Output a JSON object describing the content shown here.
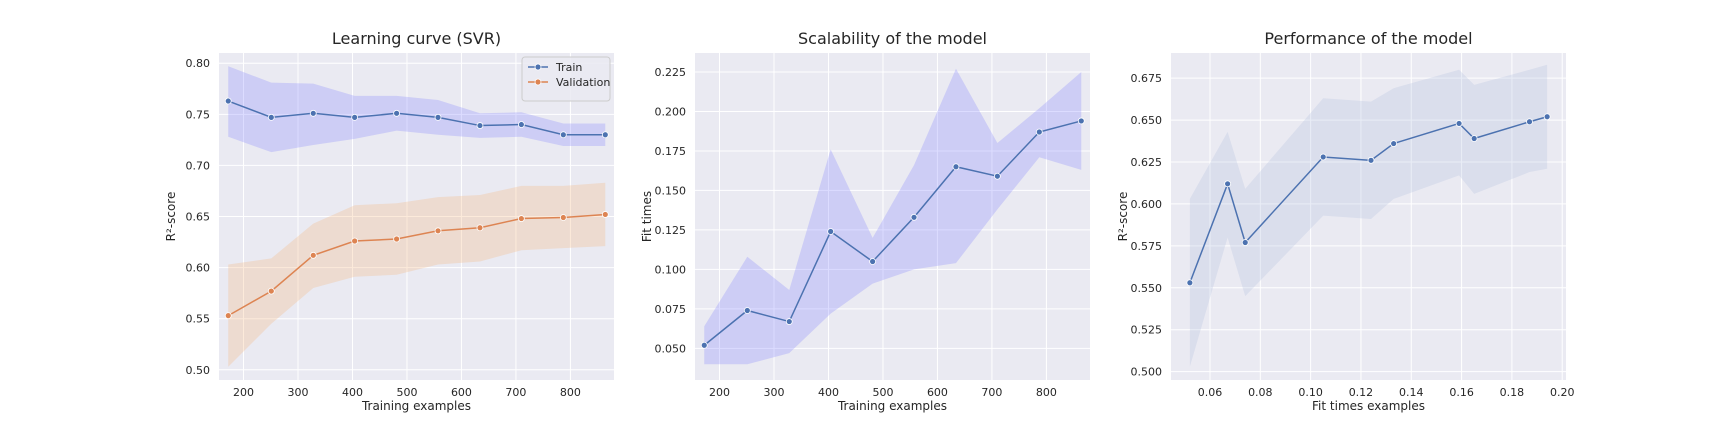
{
  "chart_data": [
    {
      "type": "line",
      "title": "Learning curve (SVR)",
      "xlabel": "Training examples",
      "ylabel": "R²-score",
      "xlim": [
        155,
        880
      ],
      "ylim": [
        0.49,
        0.81
      ],
      "xticks": [
        200,
        300,
        400,
        500,
        600,
        700,
        800
      ],
      "yticks": [
        0.5,
        0.55,
        0.6,
        0.65,
        0.7,
        0.75,
        0.8
      ],
      "grid": true,
      "legend": "top-right",
      "x": [
        172,
        251,
        328,
        404,
        481,
        557,
        634,
        710,
        787,
        864
      ],
      "series": [
        {
          "name": "Train",
          "color": "#4c72b0",
          "band_color": "#8080ff",
          "values": [
            0.763,
            0.747,
            0.751,
            0.747,
            0.751,
            0.747,
            0.739,
            0.74,
            0.73,
            0.73
          ],
          "lower": [
            0.728,
            0.713,
            0.72,
            0.726,
            0.734,
            0.73,
            0.727,
            0.728,
            0.719,
            0.719
          ],
          "upper": [
            0.797,
            0.781,
            0.78,
            0.768,
            0.768,
            0.764,
            0.751,
            0.752,
            0.741,
            0.741
          ]
        },
        {
          "name": "Validation",
          "color": "#dd8452",
          "band_color": "#f4b27a",
          "values": [
            0.553,
            0.577,
            0.612,
            0.626,
            0.628,
            0.636,
            0.639,
            0.648,
            0.649,
            0.652
          ],
          "lower": [
            0.503,
            0.545,
            0.58,
            0.591,
            0.593,
            0.603,
            0.606,
            0.617,
            0.619,
            0.621
          ],
          "upper": [
            0.603,
            0.609,
            0.643,
            0.661,
            0.663,
            0.669,
            0.671,
            0.68,
            0.68,
            0.683
          ]
        }
      ]
    },
    {
      "type": "line",
      "title": "Scalability of the model",
      "xlabel": "Training examples",
      "ylabel": "Fit times",
      "xlim": [
        155,
        880
      ],
      "ylim": [
        0.03,
        0.237
      ],
      "xticks": [
        200,
        300,
        400,
        500,
        600,
        700,
        800
      ],
      "yticks": [
        0.05,
        0.075,
        0.1,
        0.125,
        0.15,
        0.175,
        0.2,
        0.225
      ],
      "grid": true,
      "x": [
        172,
        251,
        328,
        404,
        481,
        557,
        634,
        710,
        787,
        864
      ],
      "series": [
        {
          "color": "#4c72b0",
          "band_color": "#8080ff",
          "values": [
            0.052,
            0.074,
            0.067,
            0.124,
            0.105,
            0.133,
            0.165,
            0.159,
            0.187,
            0.194
          ],
          "lower": [
            0.04,
            0.04,
            0.047,
            0.072,
            0.091,
            0.1,
            0.104,
            0.138,
            0.171,
            0.163
          ],
          "upper": [
            0.064,
            0.108,
            0.087,
            0.176,
            0.12,
            0.166,
            0.227,
            0.18,
            0.202,
            0.225
          ]
        }
      ]
    },
    {
      "type": "line",
      "title": "Performance of the model",
      "xlabel": "Fit times examples",
      "ylabel": "R²-score",
      "xlim": [
        0.0445,
        0.2015
      ],
      "ylim": [
        0.495,
        0.69
      ],
      "xticks": [
        0.06,
        0.08,
        0.1,
        0.12,
        0.14,
        0.16,
        0.18,
        0.2
      ],
      "xtick_labels": [
        "0.06",
        "0.08",
        "0.10",
        "0.12",
        "0.14",
        "0.16",
        "0.18",
        "0.20"
      ],
      "yticks": [
        0.5,
        0.525,
        0.55,
        0.575,
        0.6,
        0.625,
        0.65,
        0.675
      ],
      "grid": true,
      "series": [
        {
          "color": "#4c72b0",
          "band_color": "#b0bde0",
          "x": [
            0.052,
            0.067,
            0.074,
            0.105,
            0.124,
            0.133,
            0.159,
            0.165,
            0.187,
            0.194
          ],
          "values": [
            0.553,
            0.612,
            0.577,
            0.628,
            0.626,
            0.636,
            0.648,
            0.639,
            0.649,
            0.652
          ],
          "lower": [
            0.503,
            0.58,
            0.545,
            0.593,
            0.591,
            0.603,
            0.617,
            0.606,
            0.619,
            0.621
          ],
          "upper": [
            0.603,
            0.643,
            0.609,
            0.663,
            0.661,
            0.669,
            0.68,
            0.671,
            0.68,
            0.683
          ]
        }
      ]
    }
  ]
}
